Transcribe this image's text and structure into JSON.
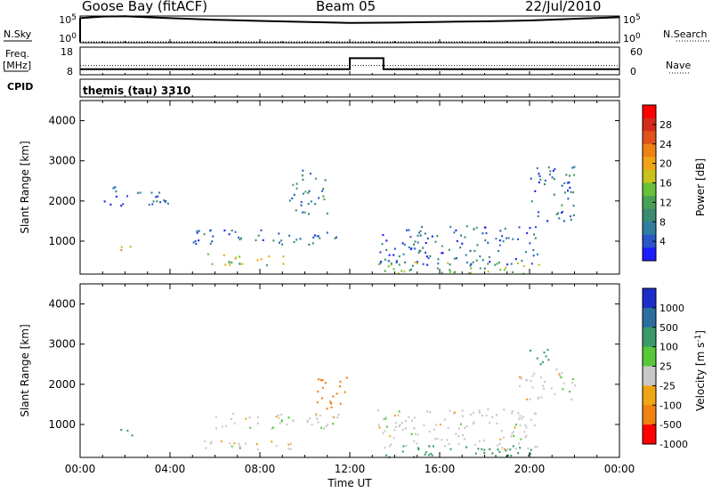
{
  "header": {
    "station": "Goose Bay (fitACF)",
    "beam": "Beam 05",
    "date": "22/Jul/2010"
  },
  "noise_panel": {
    "left_label": "N.Sky",
    "left_ticks": [
      "10^5",
      "10^0"
    ],
    "right_label": "N.Search",
    "right_ticks": [
      "10^5",
      "10^0"
    ]
  },
  "freq_panel": {
    "left_label_1": "Freq.",
    "left_label_2": "[MHz]",
    "left_ticks": [
      "18",
      "8"
    ],
    "right_label": "Nave",
    "right_ticks": [
      "60",
      "0"
    ]
  },
  "cpid": {
    "label": "CPID",
    "program": "themis (tau) 3310"
  },
  "chart_data": [
    {
      "type": "line",
      "name": "noise",
      "ylabel": "N.Sky",
      "y_scale": "log",
      "ylim": [
        1,
        100000
      ],
      "x": [
        "00:00",
        "01:00",
        "02:00",
        "03:00",
        "04:00",
        "06:00",
        "08:00",
        "10:00",
        "12:00",
        "14:00",
        "16:00",
        "18:00",
        "20:00",
        "22:00",
        "24:00"
      ],
      "series": [
        {
          "name": "N.Sky",
          "values": [
            40000,
            80000,
            90000,
            60000,
            40000,
            20000,
            12000,
            8000,
            5000,
            6000,
            8000,
            10000,
            15000,
            30000,
            60000
          ]
        },
        {
          "name": "N.Search",
          "values": [
            1,
            1,
            1,
            1,
            1,
            1,
            1,
            1,
            1,
            1,
            1,
            1,
            1,
            1,
            1
          ]
        }
      ]
    },
    {
      "type": "line",
      "name": "frequency",
      "ylabel": "Freq. [MHz]",
      "ylim": [
        8,
        18
      ],
      "y2label": "Nave",
      "y2lim": [
        0,
        60
      ],
      "x": [
        "00:00",
        "12:00",
        "12:00",
        "13:30",
        "13:30",
        "24:00"
      ],
      "series": [
        {
          "name": "Freq.",
          "values": [
            10,
            10,
            14,
            14,
            10,
            10
          ]
        },
        {
          "name": "Nave",
          "values": [
            20,
            20,
            20,
            20,
            20,
            20
          ]
        }
      ]
    },
    {
      "type": "heatmap",
      "name": "power",
      "xlabel": "",
      "ylabel": "Slant Range [km]",
      "xlim": [
        0,
        24
      ],
      "ylim": [
        180,
        4500
      ],
      "yticks": [
        1000,
        2000,
        3000,
        4000
      ],
      "colorbar_label": "Power [dB]",
      "colorbar_ticks": [
        4,
        8,
        12,
        16,
        20,
        24,
        28
      ],
      "colors": [
        "#1c1cff",
        "#2a56c8",
        "#2f7ea0",
        "#3c8a72",
        "#4aa055",
        "#69c13a",
        "#c9c11c",
        "#f0a514",
        "#f08214",
        "#e0521c",
        "#d42a1c",
        "#ff0000"
      ],
      "regions": [
        {
          "t_start": 1.5,
          "t_end": 2.3,
          "r_min": 700,
          "r_max": 900,
          "value": 22
        },
        {
          "t_start": 5.5,
          "t_end": 9.5,
          "r_min": 400,
          "r_max": 700,
          "value": 16
        },
        {
          "t_start": 5.0,
          "t_end": 11.5,
          "r_min": 900,
          "r_max": 1300,
          "value": 6
        },
        {
          "t_start": 9.3,
          "t_end": 11.0,
          "r_min": 1700,
          "r_max": 2800,
          "value": 8
        },
        {
          "t_start": 13.2,
          "t_end": 20.5,
          "r_min": 400,
          "r_max": 1400,
          "value": 6
        },
        {
          "t_start": 13.2,
          "t_end": 20.5,
          "r_min": 200,
          "r_max": 500,
          "value": 14
        },
        {
          "t_start": 20.0,
          "t_end": 22.0,
          "r_min": 1500,
          "r_max": 2900,
          "value": 6
        },
        {
          "t_start": 1.0,
          "t_end": 4.0,
          "r_min": 1900,
          "r_max": 2400,
          "value": 5
        }
      ]
    },
    {
      "type": "heatmap",
      "name": "velocity",
      "xlabel": "Time UT",
      "ylabel": "Slant Range [km]",
      "xlim": [
        0,
        24
      ],
      "ylim": [
        180,
        4500
      ],
      "xticks": [
        "00:00",
        "04:00",
        "08:00",
        "12:00",
        "16:00",
        "20:00",
        "00:00"
      ],
      "yticks": [
        1000,
        2000,
        3000,
        4000
      ],
      "colorbar_label": "Velocity [m s^-1]",
      "colorbar_ticks": [
        1000,
        500,
        100,
        25,
        -25,
        -100,
        -500,
        -1000
      ],
      "colors": [
        "#1c2cc8",
        "#2c6ea0",
        "#3a9a6a",
        "#56c83a",
        "#c8c8c8",
        "#f0a514",
        "#f08214",
        "#ff0000"
      ],
      "regions": [
        {
          "t_start": 1.5,
          "t_end": 2.3,
          "r_min": 700,
          "r_max": 900,
          "value": 200
        },
        {
          "t_start": 5.5,
          "t_end": 9.5,
          "r_min": 400,
          "r_max": 700,
          "value": 0
        },
        {
          "t_start": 5.0,
          "t_end": 11.5,
          "r_min": 900,
          "r_max": 1300,
          "value": 0
        },
        {
          "t_start": 10.5,
          "t_end": 12.0,
          "r_min": 1400,
          "r_max": 2200,
          "value": -300
        },
        {
          "t_start": 13.2,
          "t_end": 20.5,
          "r_min": 400,
          "r_max": 1400,
          "value": 0
        },
        {
          "t_start": 13.2,
          "t_end": 20.5,
          "r_min": 200,
          "r_max": 500,
          "value": 200
        },
        {
          "t_start": 20.0,
          "t_end": 21.0,
          "r_min": 2400,
          "r_max": 2900,
          "value": 200
        },
        {
          "t_start": 19.5,
          "t_end": 22.0,
          "r_min": 1600,
          "r_max": 2400,
          "value": 0
        }
      ]
    }
  ]
}
